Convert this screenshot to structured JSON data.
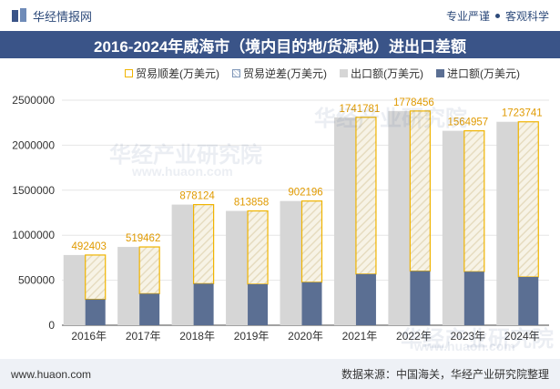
{
  "header": {
    "brand": "华经情报网",
    "tag1": "专业严谨",
    "tag2": "客观科学"
  },
  "title": "2016-2024年威海市（境内目的地/货源地）进出口差额",
  "legend": {
    "surplus": "贸易顺差(万美元)",
    "deficit": "贸易逆差(万美元)",
    "export": "出口额(万美元)",
    "import": "进口额(万美元)"
  },
  "watermark": {
    "line1": "华经产业研究院",
    "line2": "www.huaon.com"
  },
  "footer": {
    "url": "www.huaon.com",
    "source": "数据来源：中国海关，华经产业研究院整理"
  },
  "colors": {
    "export": "#d6d6d6",
    "import": "#5b6f93",
    "surplus_border": "#f0b400",
    "header_bg": "#3a5488"
  },
  "chart_data": {
    "type": "bar",
    "categories": [
      "2016年",
      "2017年",
      "2018年",
      "2019年",
      "2020年",
      "2021年",
      "2022年",
      "2023年",
      "2024年"
    ],
    "yticks": [
      "0",
      "500000",
      "1000000",
      "1500000",
      "2000000",
      "2500000"
    ],
    "ylim": [
      0,
      2500000
    ],
    "series": [
      {
        "name": "出口额(万美元)",
        "values": [
          780000,
          870000,
          1340000,
          1270000,
          1380000,
          2310000,
          2380000,
          2160000,
          2260000
        ]
      },
      {
        "name": "进口额(万美元)",
        "values": [
          287597,
          350538,
          461876,
          456142,
          477804,
          568219,
          601544,
          595043,
          536259
        ]
      },
      {
        "name": "贸易顺差(万美元)",
        "values": [
          492403,
          519462,
          878124,
          813858,
          902196,
          1741781,
          1778456,
          1564957,
          1723741
        ]
      }
    ],
    "data_labels": [
      "492403",
      "519462",
      "878124",
      "813858",
      "902196",
      "1741781",
      "1778456",
      "1564957",
      "1723741"
    ]
  }
}
